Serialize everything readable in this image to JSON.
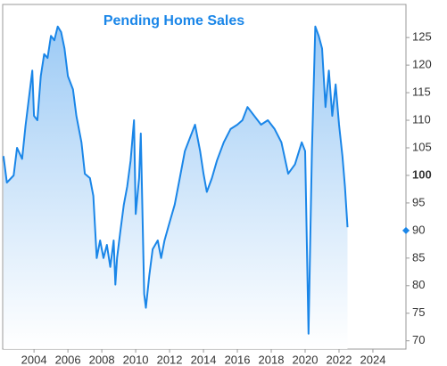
{
  "chart_data": {
    "type": "area",
    "title": "Pending Home Sales",
    "x": [
      2002.2,
      2002.4,
      2002.8,
      2003.0,
      2003.3,
      2003.5,
      2003.7,
      2003.9,
      2004.0,
      2004.2,
      2004.4,
      2004.6,
      2004.8,
      2005.0,
      2005.2,
      2005.4,
      2005.6,
      2005.8,
      2006.0,
      2006.3,
      2006.5,
      2006.8,
      2007.0,
      2007.3,
      2007.5,
      2007.7,
      2007.9,
      2008.1,
      2008.3,
      2008.5,
      2008.7,
      2008.8,
      2008.9,
      2009.1,
      2009.3,
      2009.5,
      2009.7,
      2009.9,
      2010.0,
      2010.2,
      2010.3,
      2010.5,
      2010.6,
      2010.8,
      2011.0,
      2011.3,
      2011.5,
      2011.7,
      2012.0,
      2012.3,
      2012.6,
      2012.9,
      2013.2,
      2013.5,
      2013.8,
      2014.0,
      2014.2,
      2014.5,
      2014.8,
      2015.2,
      2015.6,
      2016.0,
      2016.3,
      2016.6,
      2017.0,
      2017.4,
      2017.8,
      2018.2,
      2018.6,
      2019.0,
      2019.4,
      2019.8,
      2020.0,
      2020.2,
      2020.4,
      2020.6,
      2020.8,
      2021.0,
      2021.2,
      2021.4,
      2021.6,
      2021.8,
      2022.0,
      2022.2,
      2022.35,
      2022.5
    ],
    "series": [
      {
        "name": "Pending Home Sales",
        "color": "#1a86e8",
        "values": [
          103.5,
          98.7,
          100,
          105,
          103,
          109,
          114,
          119,
          110.8,
          110,
          118,
          122,
          121.3,
          125.3,
          124.5,
          127,
          126,
          123,
          118,
          115.6,
          110.8,
          106,
          100.3,
          99.5,
          96.3,
          85,
          88.2,
          85,
          87.4,
          83.4,
          88.2,
          80.2,
          85,
          90,
          94.7,
          98,
          102.7,
          110,
          93,
          99.5,
          107.6,
          78.5,
          76,
          81.8,
          86.6,
          88.2,
          85,
          88.2,
          91.5,
          94.7,
          99.5,
          104.4,
          106.8,
          109.2,
          104.4,
          100.3,
          97,
          99.5,
          102.7,
          106,
          108.4,
          109.2,
          110,
          112.4,
          110.8,
          109.2,
          110,
          108.4,
          106,
          100.3,
          102,
          106,
          104.4,
          71.3,
          104.4,
          127,
          125.3,
          123,
          112.4,
          119,
          110.8,
          116.5,
          109.2,
          103.5,
          98,
          90.6
        ]
      }
    ],
    "xlim": [
      2002.15,
      2025.95
    ],
    "xticks": [
      2004,
      2006,
      2008,
      2010,
      2012,
      2014,
      2016,
      2018,
      2020,
      2022,
      2024
    ],
    "ylim": [
      68.5,
      131
    ],
    "yticks": [
      70,
      75,
      80,
      85,
      90,
      95,
      100,
      105,
      110,
      115,
      120,
      125
    ],
    "bold_tick": 100,
    "current_value": 90
  }
}
